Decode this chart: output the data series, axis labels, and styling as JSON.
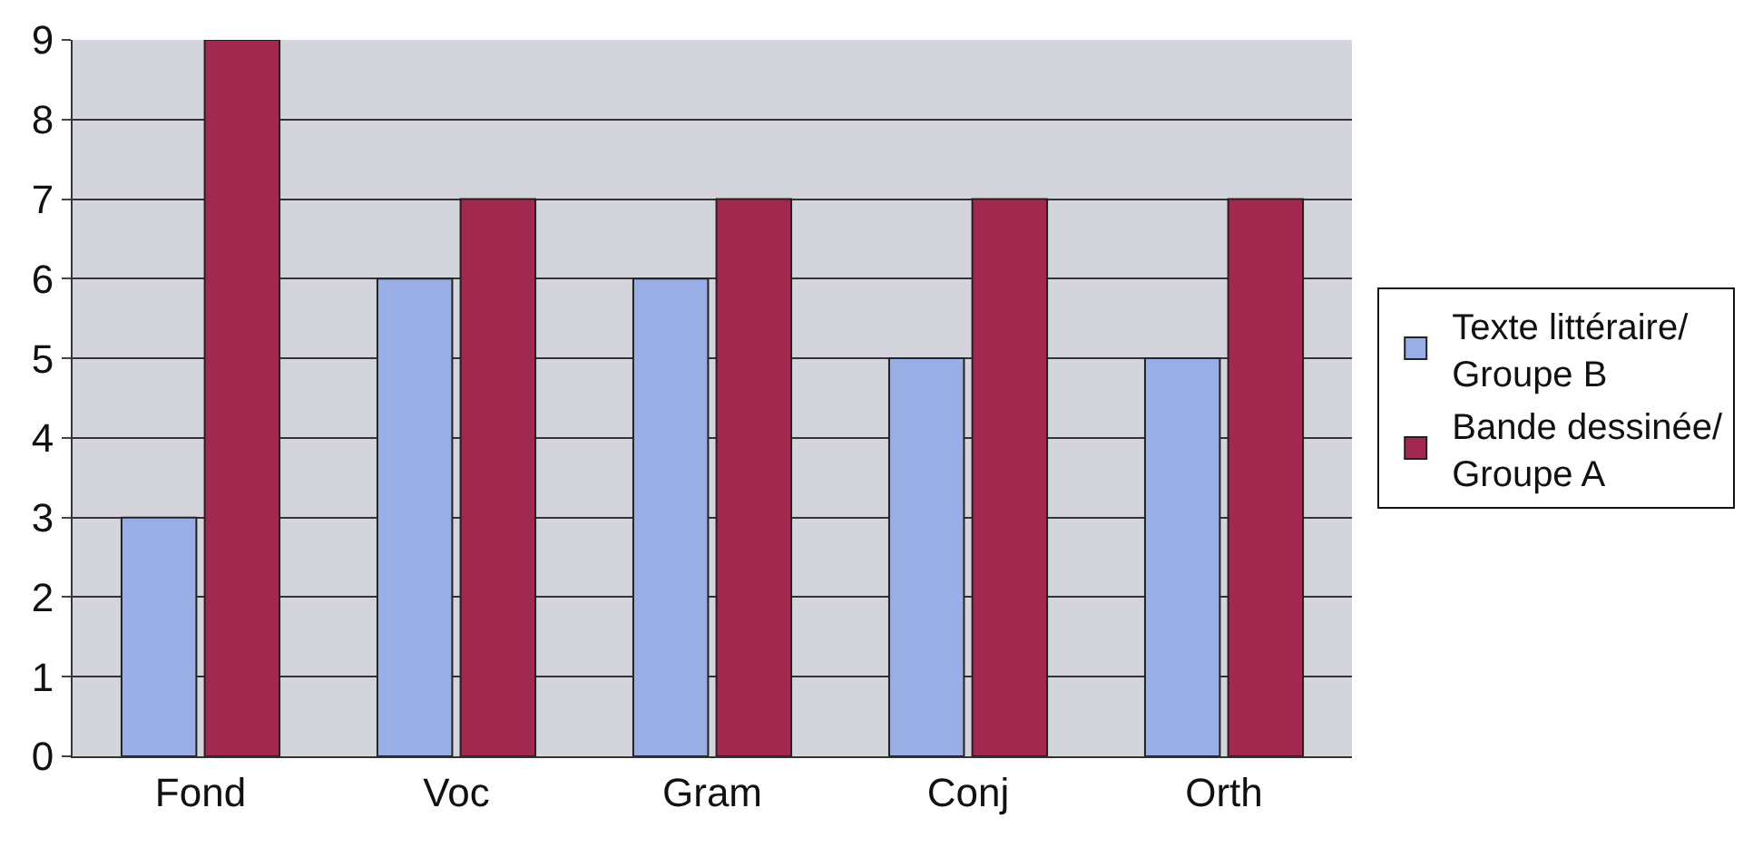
{
  "chart_data": {
    "type": "bar",
    "categories": [
      "Fond",
      "Voc",
      "Gram",
      "Conj",
      "Orth"
    ],
    "series": [
      {
        "name": "Texte littéraire/\nGroupe B",
        "color": "#9aaee6",
        "values": [
          3,
          6,
          6,
          5,
          5
        ]
      },
      {
        "name": "Bande dessinée/\nGroupe A",
        "color": "#a3284f",
        "values": [
          9,
          7,
          7,
          7,
          7
        ]
      }
    ],
    "ylim": [
      0,
      9
    ],
    "yticks": [
      0,
      1,
      2,
      3,
      4,
      5,
      6,
      7,
      8,
      9
    ],
    "grid": "y",
    "legend": "right"
  }
}
